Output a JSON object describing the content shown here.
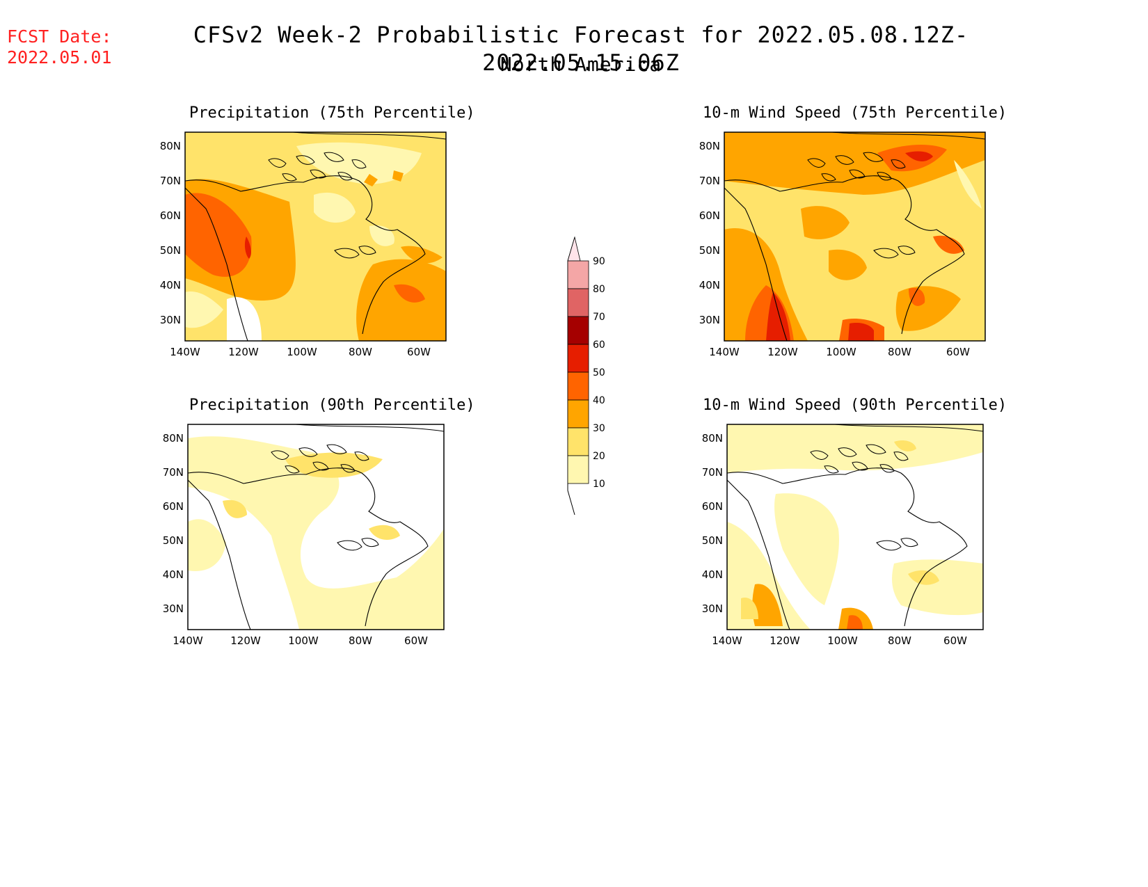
{
  "header": {
    "fcst_label": "FCST Date:",
    "fcst_date": "2022.05.01",
    "title": "CFSv2 Week-2 Probabilistic Forecast for 2022.05.08.12Z-2022.05.15.06Z",
    "region": "North America"
  },
  "axes": {
    "lat_ticks": [
      "80N",
      "70N",
      "60N",
      "50N",
      "40N",
      "30N"
    ],
    "lon_ticks": [
      "140W",
      "120W",
      "100W",
      "80W",
      "60W"
    ]
  },
  "panels": [
    {
      "title": "Precipitation (75th Percentile)"
    },
    {
      "title": "10-m Wind Speed (75th Percentile)"
    },
    {
      "title": "Precipitation (90th Percentile)"
    },
    {
      "title": "10-m Wind Speed (90th Percentile)"
    }
  ],
  "colorbar": {
    "labels": [
      "90",
      "80",
      "70",
      "60",
      "50",
      "40",
      "30",
      "20",
      "10"
    ],
    "colors": [
      "#ffffff",
      "#fff7b0",
      "#ffe36a",
      "#ffa500",
      "#ff6400",
      "#e61e00",
      "#a50000",
      "#e06464",
      "#f4a6a6",
      "#ffe4ea"
    ]
  }
}
